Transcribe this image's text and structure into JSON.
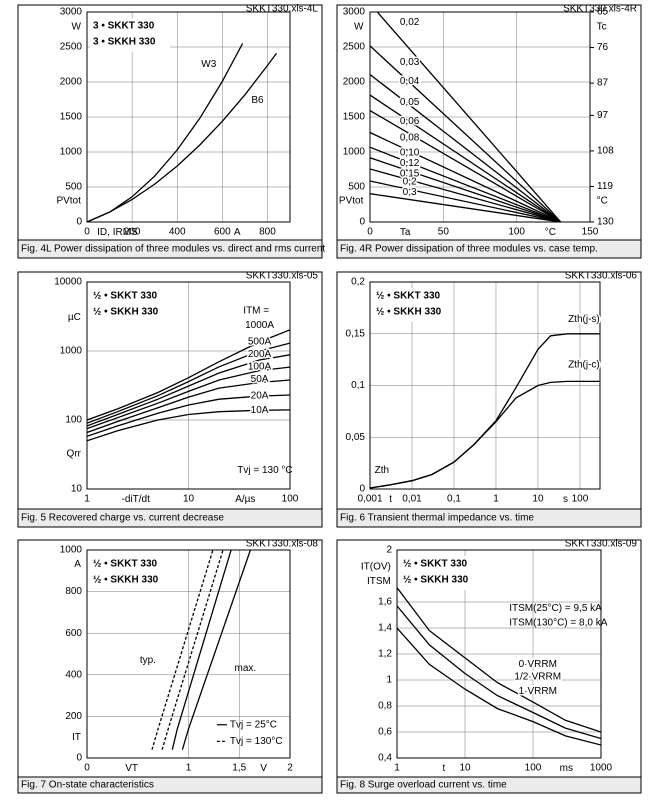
{
  "chart_data": [
    {
      "type": "line",
      "title": "Fig. 4L Power dissipation of three modules vs. direct and rms current",
      "code": "SKKT330.xls-4L",
      "device": [
        "3 • SKKT 330",
        "3 • SKKH 330"
      ],
      "xscale": "linear",
      "yscale": "linear",
      "grid": true,
      "xlim": [
        0,
        900
      ],
      "ylim": [
        0,
        3000
      ],
      "xticks": [
        0,
        200,
        400,
        600,
        800
      ],
      "yticks": [
        0,
        500,
        1000,
        1500,
        2000,
        2500,
        3000
      ],
      "annotations": [
        "W",
        "PVtot",
        "ID, IRMS",
        "A"
      ],
      "series": [
        {
          "name": "W3",
          "color": "#000000",
          "x": [
            0,
            100,
            200,
            300,
            400,
            500,
            600,
            690
          ],
          "values": [
            0,
            141,
            360,
            656,
            1030,
            1481,
            2009,
            2551
          ]
        },
        {
          "name": "B6",
          "color": "#000000",
          "x": [
            0,
            100,
            200,
            300,
            400,
            500,
            600,
            700,
            800,
            840
          ],
          "values": [
            0,
            141,
            321,
            541,
            800,
            1100,
            1438,
            1817,
            2234,
            2412
          ]
        }
      ]
    },
    {
      "type": "line",
      "title": "Fig. 4R Power dissipation of three modules vs. case temp.",
      "code": "SKKT330.xls-4R",
      "xscale": "linear",
      "yscale": "linear",
      "grid": true,
      "xlim": [
        0,
        150
      ],
      "ylim": [
        0,
        3000
      ],
      "xticks": [
        0,
        50,
        100,
        150
      ],
      "yticks": [
        0,
        500,
        1000,
        1500,
        2000,
        2500,
        3000
      ],
      "y2lim": [
        130,
        65
      ],
      "y2ticks": [
        130,
        119,
        108,
        97,
        87,
        76,
        65
      ],
      "annotations": [
        "W",
        "PVtot",
        "Ta",
        "°C",
        "Tc",
        "°C"
      ],
      "series": [
        {
          "name": "0,02",
          "color": "#000000",
          "x": [
            5,
            130
          ],
          "values": [
            3000,
            0
          ]
        },
        {
          "name": "0,03",
          "color": "#000000",
          "x": [
            0,
            130
          ],
          "values": [
            2515,
            0
          ]
        },
        {
          "name": "0,04",
          "color": "#000000",
          "x": [
            0,
            130
          ],
          "values": [
            2107,
            0
          ]
        },
        {
          "name": "0,05",
          "color": "#000000",
          "x": [
            0,
            130
          ],
          "values": [
            1813,
            0
          ]
        },
        {
          "name": "0,06",
          "color": "#000000",
          "x": [
            0,
            130
          ],
          "values": [
            1591,
            0
          ]
        },
        {
          "name": "0,08",
          "color": "#000000",
          "x": [
            0,
            130
          ],
          "values": [
            1278,
            0
          ]
        },
        {
          "name": "0,10",
          "color": "#000000",
          "x": [
            0,
            130
          ],
          "values": [
            1069,
            0
          ]
        },
        {
          "name": "0,12",
          "color": "#000000",
          "x": [
            0,
            130
          ],
          "values": [
            917,
            0
          ]
        },
        {
          "name": "0,15",
          "color": "#000000",
          "x": [
            0,
            130
          ],
          "values": [
            757,
            0
          ]
        },
        {
          "name": "0,2",
          "color": "#000000",
          "x": [
            0,
            130
          ],
          "values": [
            586,
            0
          ]
        },
        {
          "name": "0,3",
          "color": "#000000",
          "x": [
            0,
            130
          ],
          "values": [
            404,
            0
          ]
        }
      ]
    },
    {
      "type": "line",
      "title": "Fig. 5 Recovered charge vs. current decrease",
      "code": "SKKT330.xls-05",
      "device": [
        "½ • SKKT 330",
        "½ • SKKH 330"
      ],
      "xscale": "log",
      "yscale": "log",
      "grid": true,
      "xlim": [
        1,
        100
      ],
      "ylim": [
        10,
        10000
      ],
      "xticks": [
        1,
        10,
        100
      ],
      "yticks": [
        10,
        100,
        1000,
        10000
      ],
      "annotations": [
        "µC",
        "Qrr",
        "-diT/dt",
        "A/µs",
        "ITM =",
        "Tvj = 130 °C"
      ],
      "series": [
        {
          "name": "1000A",
          "color": "#000000",
          "x": [
            1,
            2,
            5,
            10,
            20,
            50,
            100
          ],
          "values": [
            100,
            145,
            250,
            410,
            700,
            1350,
            2030
          ]
        },
        {
          "name": "500A",
          "color": "#000000",
          "x": [
            1,
            2,
            5,
            10,
            20,
            50,
            100
          ],
          "values": [
            90,
            132,
            225,
            360,
            590,
            1000,
            1300
          ]
        },
        {
          "name": "200A",
          "color": "#000000",
          "x": [
            1,
            2,
            5,
            10,
            20,
            50,
            100
          ],
          "values": [
            82,
            120,
            200,
            310,
            480,
            740,
            880
          ]
        },
        {
          "name": "100A",
          "color": "#000000",
          "x": [
            1,
            2,
            5,
            10,
            20,
            50,
            100
          ],
          "values": [
            75,
            108,
            175,
            260,
            380,
            520,
            585
          ]
        },
        {
          "name": "50A",
          "color": "#000000",
          "x": [
            1,
            2,
            5,
            10,
            20,
            50,
            100
          ],
          "values": [
            66,
            95,
            150,
            215,
            290,
            350,
            380
          ]
        },
        {
          "name": "20A",
          "color": "#000000",
          "x": [
            1,
            2,
            5,
            10,
            20,
            50,
            100
          ],
          "values": [
            58,
            82,
            125,
            165,
            200,
            222,
            230
          ]
        },
        {
          "name": "10A",
          "color": "#000000",
          "x": [
            1,
            2,
            5,
            10,
            20,
            50,
            100
          ],
          "values": [
            50,
            70,
            100,
            120,
            132,
            138,
            140
          ]
        }
      ]
    },
    {
      "type": "line",
      "title": "Fig. 6 Transient thermal impedance vs. time",
      "code": "SKKT330.xls-06",
      "device": [
        "½ • SKKT 330",
        "½ • SKKH 330"
      ],
      "xscale": "log",
      "yscale": "linear",
      "grid": true,
      "xlim": [
        0.001,
        300
      ],
      "ylim": [
        0,
        0.2
      ],
      "xticks": [
        {
          "value": 0.001,
          "label": "0,001"
        },
        {
          "value": 0.01,
          "label": "0,01"
        },
        {
          "value": 0.1,
          "label": "0,1"
        },
        1,
        10,
        100
      ],
      "yticks": [
        0,
        {
          "value": 0.05,
          "label": "0,05"
        },
        {
          "value": 0.1,
          "label": "0,1"
        },
        {
          "value": 0.15,
          "label": "0,15"
        },
        {
          "value": 0.2,
          "label": "0,2"
        }
      ],
      "annotations": [
        "K/W",
        "Zth",
        "t",
        "s"
      ],
      "series": [
        {
          "name": "Zth(j-s)",
          "color": "#000000",
          "x": [
            0.001,
            0.003,
            0.01,
            0.03,
            0.1,
            0.3,
            1,
            3,
            10,
            20,
            50,
            300
          ],
          "values": [
            0.001,
            0.004,
            0.008,
            0.014,
            0.026,
            0.043,
            0.066,
            0.098,
            0.135,
            0.148,
            0.15,
            0.15
          ]
        },
        {
          "name": "Zth(j-c)",
          "color": "#000000",
          "x": [
            0.001,
            0.003,
            0.01,
            0.03,
            0.1,
            0.3,
            1,
            3,
            10,
            20,
            50,
            300
          ],
          "values": [
            0.001,
            0.004,
            0.008,
            0.014,
            0.026,
            0.043,
            0.065,
            0.088,
            0.1,
            0.103,
            0.104,
            0.104
          ]
        }
      ]
    },
    {
      "type": "line",
      "title": "Fig. 7 On-state characteristics",
      "code": "SKKT330.xls-08",
      "device": [
        "½ • SKKT 330",
        "½ • SKKH 330"
      ],
      "xscale": "linear",
      "yscale": "linear",
      "grid": true,
      "xlim": [
        0,
        2
      ],
      "ylim": [
        0,
        1000
      ],
      "xticks": [
        0,
        1,
        {
          "value": 1.5,
          "label": "1,5"
        },
        2
      ],
      "yticks": [
        0,
        200,
        400,
        600,
        800,
        1000
      ],
      "annotations": [
        "A",
        "IT",
        "VT",
        "V",
        "typ.",
        "max."
      ],
      "legend": [
        {
          "name": "Tvj = 25°C",
          "dash": false
        },
        {
          "name": "Tvj = 130°C",
          "dash": true
        }
      ],
      "series": [
        {
          "color": "#000000",
          "dash": true,
          "x": [
            0.64,
            0.7,
            1.24
          ],
          "values": [
            40,
            140,
            1000
          ]
        },
        {
          "color": "#000000",
          "dash": true,
          "x": [
            0.74,
            0.8,
            1.34
          ],
          "values": [
            40,
            140,
            1000
          ]
        },
        {
          "color": "#000000",
          "dash": false,
          "x": [
            0.84,
            0.89,
            1.42
          ],
          "values": [
            40,
            140,
            1000
          ]
        },
        {
          "color": "#000000",
          "dash": false,
          "x": [
            0.94,
            1.0,
            1.61
          ],
          "values": [
            40,
            140,
            1000
          ]
        }
      ]
    },
    {
      "type": "line",
      "title": "Fig. 8 Surge overload current vs. time",
      "code": "SKKT330.xls-09",
      "device": [
        "½ • SKKT 330",
        "½ • SKKH 330"
      ],
      "xscale": "log",
      "yscale": "linear",
      "grid": true,
      "xlim": [
        1,
        1000
      ],
      "ylim": [
        0.4,
        2
      ],
      "xticks": [
        1,
        10,
        100,
        1000
      ],
      "yticks": [
        {
          "value": 0.4,
          "label": "0,4"
        },
        {
          "value": 0.6,
          "label": "0,6"
        },
        {
          "value": 0.8,
          "label": "0,8"
        },
        1,
        {
          "value": 1.2,
          "label": "1,2"
        },
        {
          "value": 1.4,
          "label": "1,4"
        },
        {
          "value": 1.6,
          "label": "1,6"
        },
        2
      ],
      "annotations": [
        "IT(OV)",
        "ITSM",
        "t",
        "ms",
        "ITSM(25°C) = 9,5 kA",
        "ITSM(130°C) = 8,0 kA"
      ],
      "series": [
        {
          "name": "0·VRRM",
          "color": "#000000",
          "x": [
            1,
            3,
            10,
            30,
            100,
            300,
            1000
          ],
          "values": [
            1.71,
            1.38,
            1.17,
            0.98,
            0.83,
            0.69,
            0.6
          ]
        },
        {
          "name": "1/2·VRRM",
          "color": "#000000",
          "x": [
            1,
            3,
            10,
            30,
            100,
            300,
            1000
          ],
          "values": [
            1.57,
            1.27,
            1.05,
            0.88,
            0.75,
            0.63,
            0.55
          ]
        },
        {
          "name": "1·VRRM",
          "color": "#000000",
          "x": [
            1,
            3,
            10,
            30,
            100,
            300,
            1000
          ],
          "values": [
            1.4,
            1.12,
            0.93,
            0.78,
            0.68,
            0.57,
            0.5
          ]
        }
      ]
    }
  ]
}
